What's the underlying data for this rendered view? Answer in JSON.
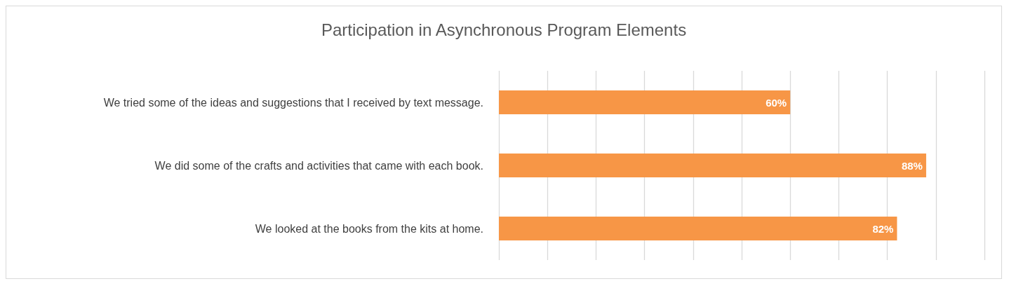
{
  "chart_data": {
    "type": "bar",
    "orientation": "horizontal",
    "title": "Participation in Asynchronous Program Elements",
    "categories": [
      "We tried some of the ideas and suggestions that I received by text message.",
      "We did some of the crafts and activities that came with each book.",
      "We looked at the books from the kits at home."
    ],
    "values": [
      60,
      88,
      82
    ],
    "value_labels": [
      "60%",
      "88%",
      "82%"
    ],
    "color": "#f79646",
    "xlim": [
      0,
      100
    ],
    "xticks": [
      {
        "value": 0,
        "label": null
      },
      {
        "value": 10,
        "label": null
      },
      {
        "value": 20,
        "label": null
      },
      {
        "value": 30,
        "label": null
      },
      {
        "value": 40,
        "label": null
      },
      {
        "value": 50,
        "label": null
      },
      {
        "value": 60,
        "label": null
      },
      {
        "value": 70,
        "label": null
      },
      {
        "value": 80,
        "label": null
      },
      {
        "value": 90,
        "label": null
      },
      {
        "value": 100,
        "label": null
      }
    ],
    "grid": "x",
    "tick_labels": "y"
  }
}
